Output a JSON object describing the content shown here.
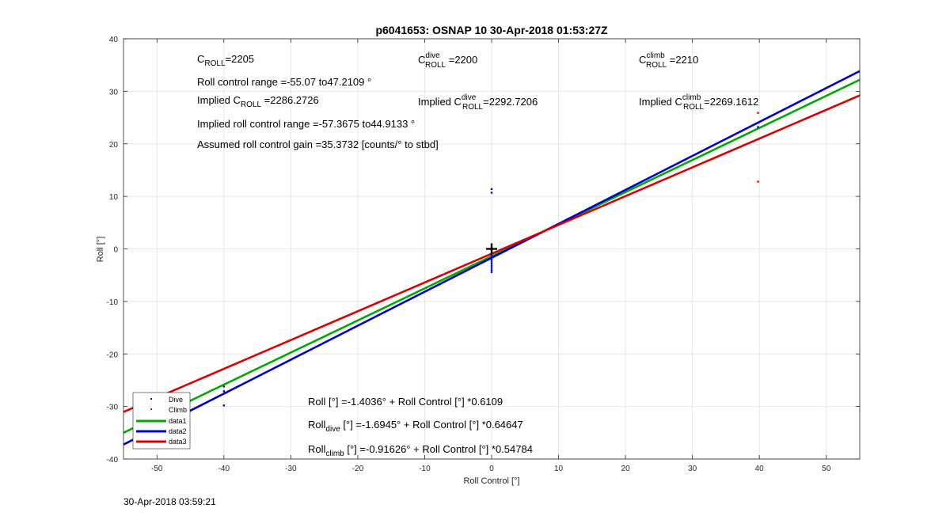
{
  "footer_timestamp": "30-Apr-2018 03:59:21",
  "chart_data": {
    "type": "scatter",
    "title": "p6041653: OSNAP 10 30-Apr-2018 01:53:27Z",
    "xlabel": "Roll Control [°]",
    "ylabel": "Roll [°]",
    "xlim": [
      -55,
      55
    ],
    "ylim": [
      -40,
      40
    ],
    "xticks": [
      -50,
      -40,
      -30,
      -20,
      -10,
      0,
      10,
      20,
      30,
      40,
      50
    ],
    "yticks": [
      -40,
      -30,
      -20,
      -10,
      0,
      10,
      20,
      30,
      40
    ],
    "grid": true,
    "legend_position": "bottom-left",
    "series": [
      {
        "name": "Dive",
        "kind": "points",
        "color": "#0000ff",
        "points": [
          [
            -40,
            -26.2
          ],
          [
            -40,
            -27.1
          ],
          [
            -40,
            -29.8
          ],
          [
            0,
            11.4
          ],
          [
            0,
            10.7
          ],
          [
            0,
            -1.2
          ],
          [
            0,
            -1.6
          ],
          [
            0,
            -2.0
          ],
          [
            0,
            -2.4
          ],
          [
            0,
            -2.8
          ],
          [
            0,
            -3.2
          ],
          [
            0,
            -3.6
          ],
          [
            0,
            -4.0
          ],
          [
            0,
            -4.4
          ],
          [
            39.8,
            23.2
          ],
          [
            39.8,
            24.0
          ]
        ]
      },
      {
        "name": "Climb",
        "kind": "points",
        "color": "#ff0000",
        "points": [
          [
            39.8,
            25.9
          ],
          [
            39.8,
            12.8
          ],
          [
            0,
            -0.2
          ],
          [
            0,
            0.2
          ]
        ]
      },
      {
        "name": "data1",
        "kind": "line",
        "color": "#00aa00",
        "intercept": -1.4036,
        "slope": 0.6109
      },
      {
        "name": "data2",
        "kind": "line",
        "color": "#0000cc",
        "intercept": -1.6945,
        "slope": 0.64647
      },
      {
        "name": "data3",
        "kind": "line",
        "color": "#dd0000",
        "intercept": -0.91626,
        "slope": 0.54784
      }
    ],
    "marker": {
      "x": 0,
      "y": 0,
      "symbol": "+"
    },
    "annotations": [
      {
        "id": "c_roll",
        "main": "C",
        "sub": "ROLL",
        "rest": "=2205"
      },
      {
        "id": "c_roll_dive",
        "main": "C",
        "sup": "dive",
        "sub": "ROLL",
        "rest": " =2200"
      },
      {
        "id": "c_roll_climb",
        "main": "C",
        "sup": "climb",
        "sub": "ROLL",
        "rest": " =2210"
      },
      {
        "id": "range",
        "text": "Roll control range =-55.07 to47.2109 °"
      },
      {
        "id": "impl_c",
        "pre": "Implied C",
        "sub": "ROLL",
        "rest": " =2286.2726"
      },
      {
        "id": "impl_c_dive",
        "pre": "Implied C",
        "sup": "dive",
        "sub": "ROLL",
        "rest": "=2292.7206"
      },
      {
        "id": "impl_c_climb",
        "pre": "Implied C",
        "sup": "climb",
        "sub": "ROLL",
        "rest": "=2269.1612"
      },
      {
        "id": "impl_range",
        "text": "Implied roll control range =-57.3675 to44.9133 °"
      },
      {
        "id": "gain",
        "text": "Assumed roll control gain =35.3732 [counts/° to stbd]"
      },
      {
        "id": "eq_all",
        "pre": "Roll [°] =-1.4036° + Roll Control [°] *0.6109"
      },
      {
        "id": "eq_dive",
        "pre": "Roll",
        "sub": "dive",
        "rest": " [°] =-1.6945° + Roll Control [°] *0.64647"
      },
      {
        "id": "eq_climb",
        "pre": "Roll",
        "sub": "climb",
        "rest": " [°] =-0.91626° + Roll Control [°] *0.54784"
      }
    ]
  }
}
